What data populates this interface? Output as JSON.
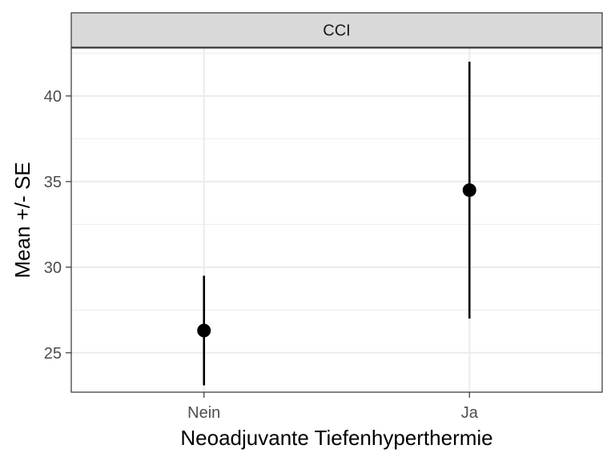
{
  "chart_data": {
    "type": "scatter",
    "facet_label": "CCI",
    "categories": [
      "Nein",
      "Ja"
    ],
    "points": [
      {
        "category": "Nein",
        "mean": 26.3,
        "lower": 23.1,
        "upper": 29.5
      },
      {
        "category": "Ja",
        "mean": 34.5,
        "lower": 27.0,
        "upper": 42.0
      }
    ],
    "xlabel": "Neoadjuvante Tiefenhyperthermie",
    "ylabel": "Mean +/- SE",
    "ylim": [
      22.7,
      42.8
    ],
    "yticks": [
      25,
      30,
      35,
      40
    ],
    "ytick_labels": [
      "25",
      "30",
      "35",
      "40"
    ],
    "grid": true,
    "colors": {
      "marker": "#000000",
      "strip": "#d9d9d9",
      "grid": "#ebebeb",
      "border": "#333333",
      "text": "#4d4d4d"
    }
  }
}
